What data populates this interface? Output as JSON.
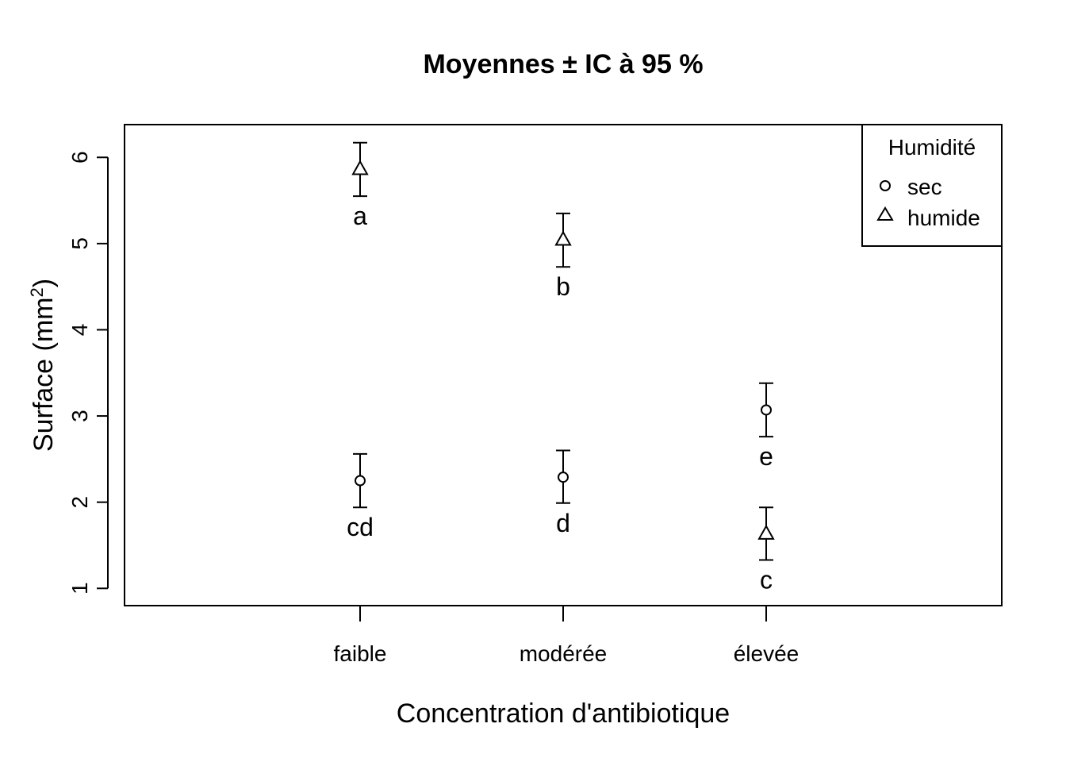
{
  "chart_data": {
    "type": "scatter",
    "title": "Moyennes ± IC à 95 %",
    "xlabel": "Concentration d'antibiotique",
    "ylabel": "Surface (mm",
    "ylabel_superscript": "2",
    "ylabel_suffix": ")",
    "categories": [
      "faible",
      "modérée",
      "élevée"
    ],
    "yticks": [
      "1",
      "2",
      "3",
      "4",
      "5",
      "6"
    ],
    "ylim": [
      0.8,
      6.38
    ],
    "grid": false,
    "legend": {
      "title": "Humidité",
      "placement": "top-right",
      "entries": [
        "sec",
        "humide"
      ]
    },
    "series": [
      {
        "name": "sec",
        "marker": "circle",
        "values": [
          2.25,
          2.29,
          3.07
        ],
        "lower": [
          1.94,
          1.99,
          2.76
        ],
        "upper": [
          2.56,
          2.6,
          3.38
        ],
        "letters": [
          "cd",
          "d",
          "e"
        ]
      },
      {
        "name": "humide",
        "marker": "triangle",
        "values": [
          5.86,
          5.04,
          1.63
        ],
        "lower": [
          5.55,
          4.73,
          1.33
        ],
        "upper": [
          6.17,
          5.35,
          1.94
        ],
        "letters": [
          "a",
          "b",
          "c"
        ]
      }
    ]
  }
}
